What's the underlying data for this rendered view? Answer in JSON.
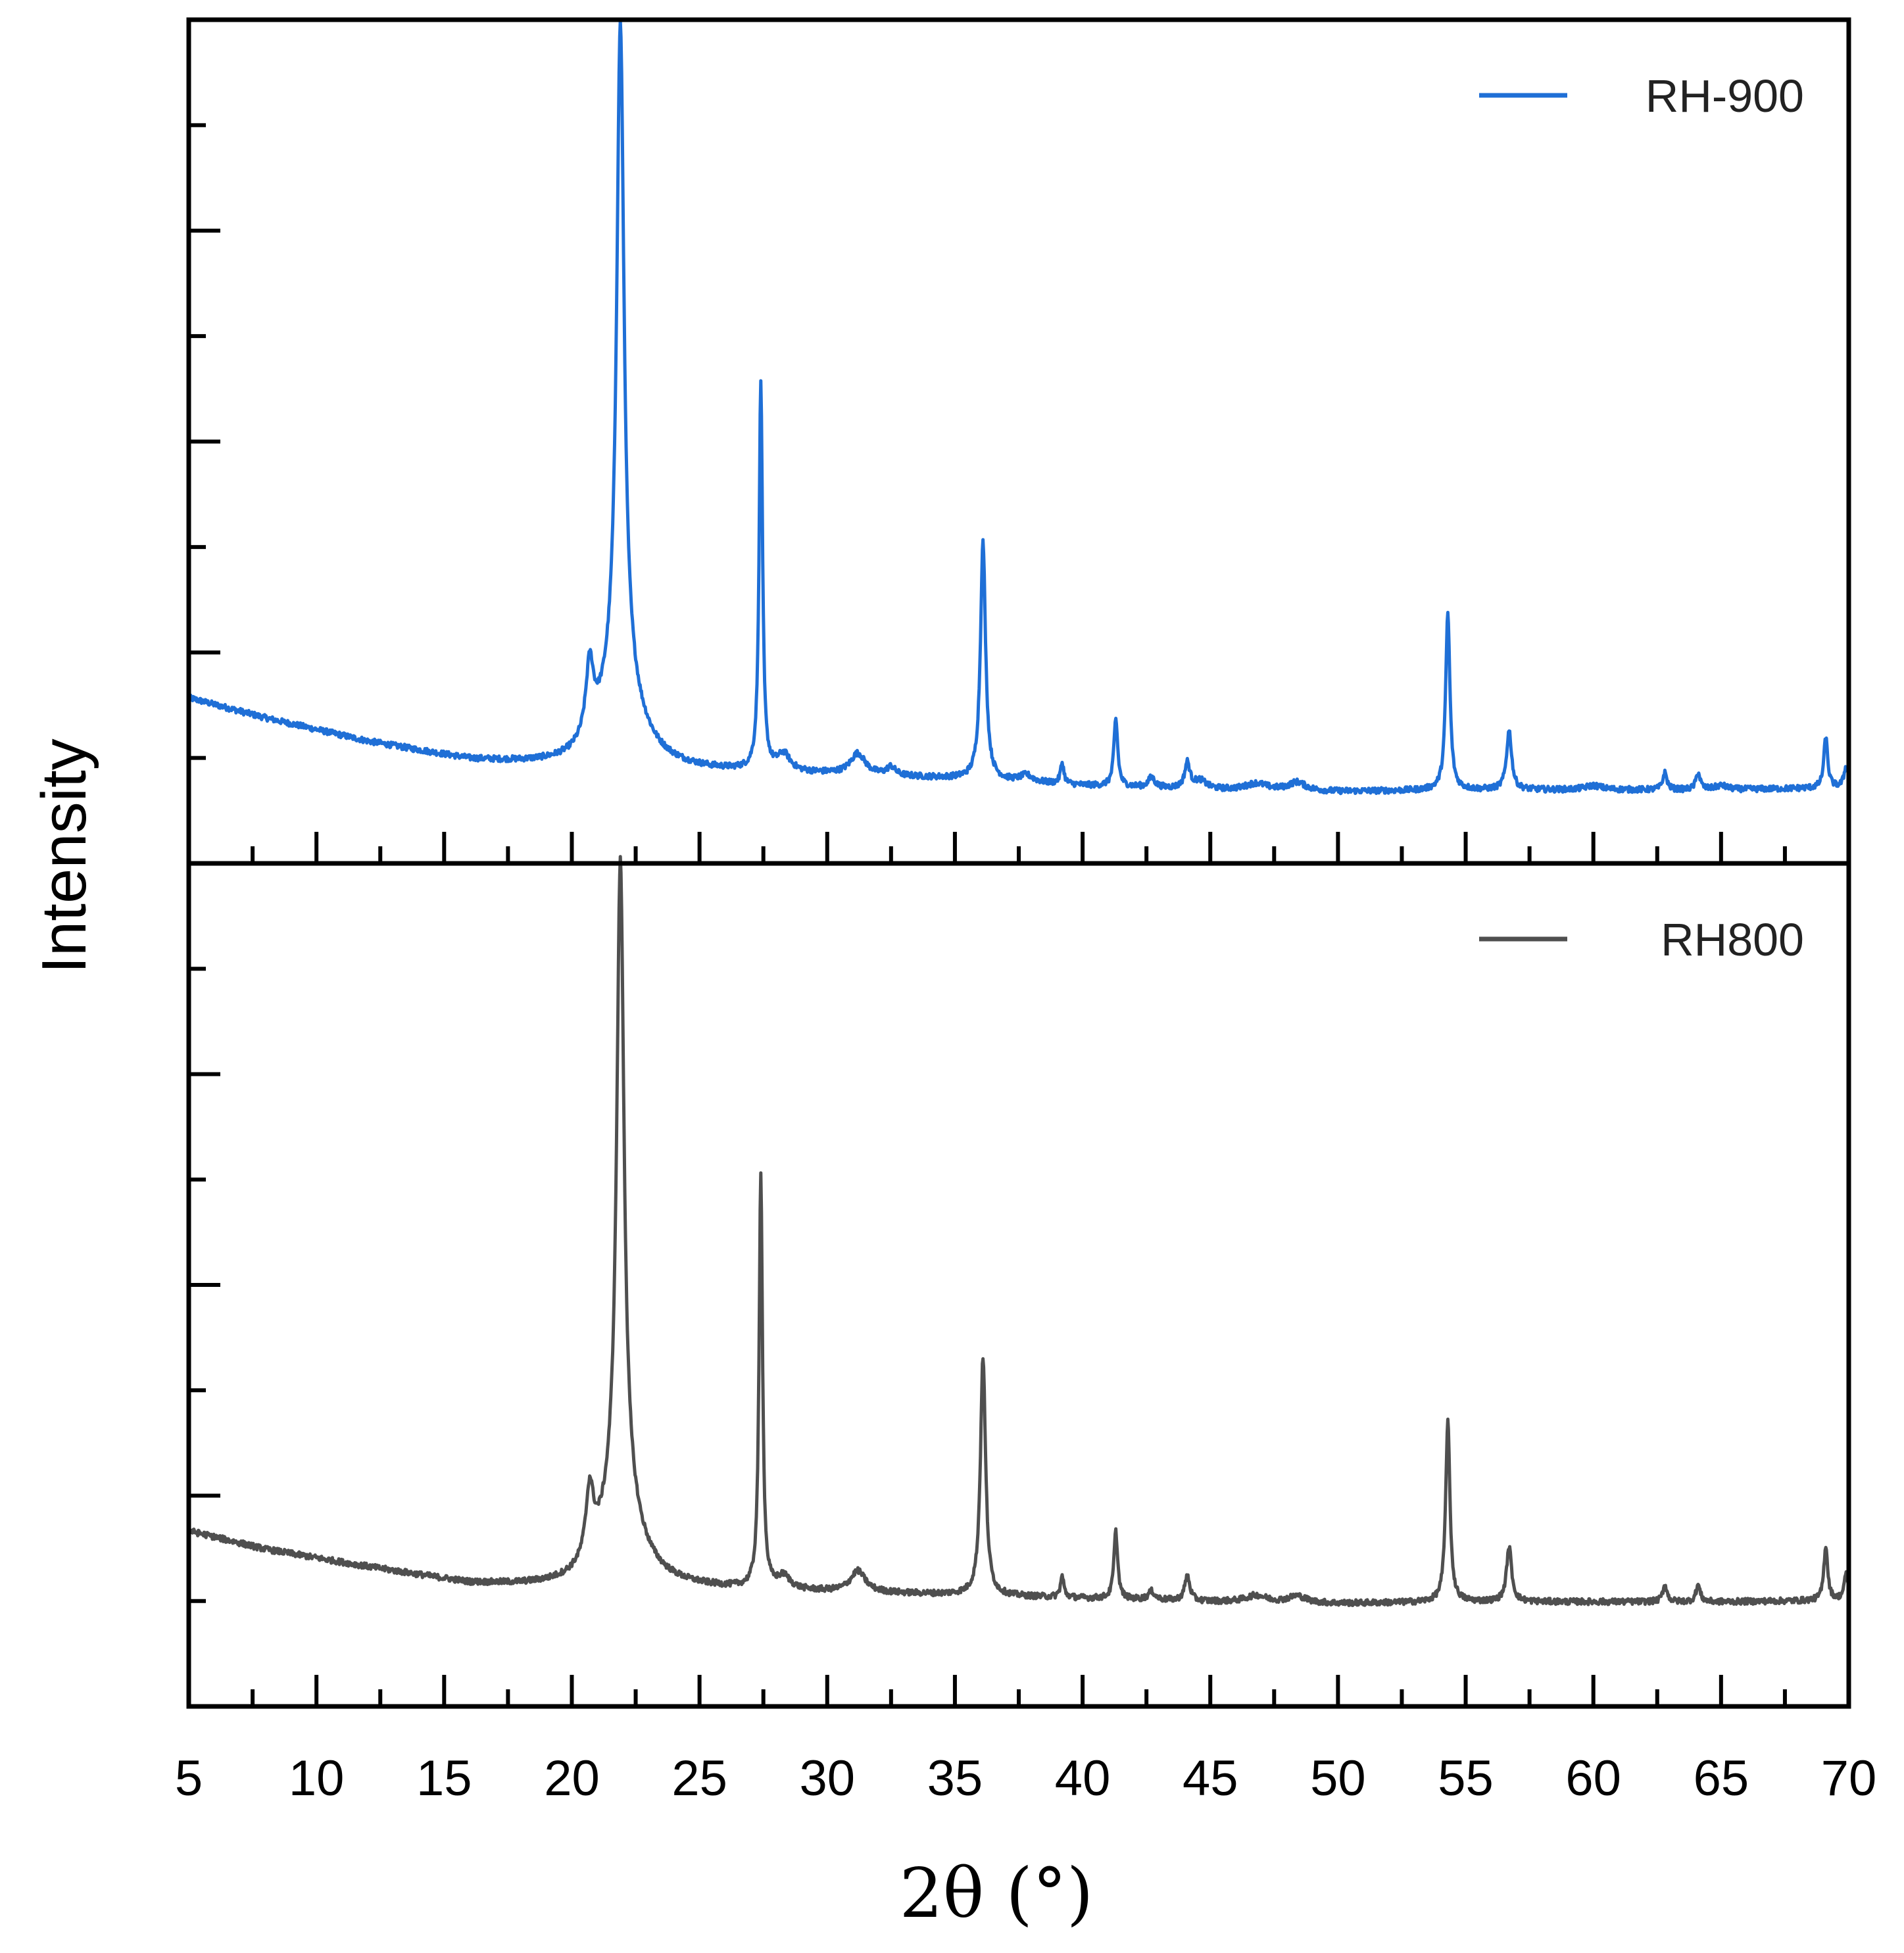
{
  "chart_data": {
    "type": "line",
    "xlabel": "2θ (°)",
    "ylabel": "Intensity",
    "xlim": [
      5,
      70
    ],
    "x_ticks": [
      5,
      10,
      15,
      20,
      25,
      30,
      35,
      40,
      45,
      50,
      55,
      60,
      65,
      70
    ],
    "x_tick_labels": [
      "5",
      "10",
      "15",
      "20",
      "25",
      "30",
      "35",
      "40",
      "45",
      "50",
      "55",
      "60",
      "65",
      "70"
    ],
    "panels": [
      {
        "name": "top",
        "legend": "RH-900",
        "color": "#1f6fd6",
        "ylim": [
          0,
          1
        ],
        "baseline": [
          [
            5,
            0.196
          ],
          [
            8,
            0.172
          ],
          [
            12,
            0.144
          ],
          [
            16,
            0.122
          ],
          [
            20,
            0.112
          ],
          [
            25,
            0.108
          ],
          [
            30,
            0.105
          ],
          [
            35,
            0.1
          ],
          [
            40,
            0.092
          ],
          [
            45,
            0.087
          ],
          [
            50,
            0.085
          ],
          [
            55,
            0.087
          ],
          [
            60,
            0.087
          ],
          [
            65,
            0.087
          ],
          [
            70,
            0.09
          ]
        ],
        "peaks": [
          {
            "x": 20.7,
            "h": 0.085,
            "w": 0.18
          },
          {
            "x": 21.9,
            "h": 0.775,
            "w": 0.17
          },
          {
            "x": 21.9,
            "h": 0.11,
            "w": 0.9
          },
          {
            "x": 27.4,
            "h": 0.46,
            "w": 0.08
          },
          {
            "x": 28.3,
            "h": 0.02,
            "w": 0.3
          },
          {
            "x": 31.2,
            "h": 0.025,
            "w": 0.35
          },
          {
            "x": 32.5,
            "h": 0.01,
            "w": 0.2
          },
          {
            "x": 36.1,
            "h": 0.282,
            "w": 0.12
          },
          {
            "x": 37.8,
            "h": 0.008,
            "w": 0.3
          },
          {
            "x": 39.2,
            "h": 0.025,
            "w": 0.08
          },
          {
            "x": 41.3,
            "h": 0.08,
            "w": 0.09
          },
          {
            "x": 42.7,
            "h": 0.012,
            "w": 0.15
          },
          {
            "x": 44.1,
            "h": 0.03,
            "w": 0.12
          },
          {
            "x": 44.6,
            "h": 0.01,
            "w": 0.3
          },
          {
            "x": 46.8,
            "h": 0.008,
            "w": 0.5
          },
          {
            "x": 48.4,
            "h": 0.01,
            "w": 0.4
          },
          {
            "x": 54.3,
            "h": 0.21,
            "w": 0.1
          },
          {
            "x": 56.7,
            "h": 0.07,
            "w": 0.12
          },
          {
            "x": 60.0,
            "h": 0.005,
            "w": 0.4
          },
          {
            "x": 62.8,
            "h": 0.02,
            "w": 0.1
          },
          {
            "x": 64.1,
            "h": 0.02,
            "w": 0.1
          },
          {
            "x": 65.0,
            "h": 0.005,
            "w": 0.3
          },
          {
            "x": 69.1,
            "h": 0.06,
            "w": 0.09
          },
          {
            "x": 69.9,
            "h": 0.025,
            "w": 0.1
          }
        ]
      },
      {
        "name": "bottom",
        "legend": "RH800",
        "color": "#4f4f4f",
        "ylim": [
          0,
          1
        ],
        "baseline": [
          [
            5,
            0.208
          ],
          [
            8,
            0.186
          ],
          [
            12,
            0.165
          ],
          [
            16,
            0.145
          ],
          [
            20,
            0.138
          ],
          [
            25,
            0.138
          ],
          [
            30,
            0.135
          ],
          [
            35,
            0.132
          ],
          [
            40,
            0.128
          ],
          [
            45,
            0.124
          ],
          [
            50,
            0.122
          ],
          [
            55,
            0.124
          ],
          [
            60,
            0.124
          ],
          [
            65,
            0.124
          ],
          [
            70,
            0.126
          ]
        ],
        "peaks": [
          {
            "x": 20.7,
            "h": 0.08,
            "w": 0.18
          },
          {
            "x": 21.9,
            "h": 0.755,
            "w": 0.17
          },
          {
            "x": 21.9,
            "h": 0.11,
            "w": 0.9
          },
          {
            "x": 27.4,
            "h": 0.49,
            "w": 0.08
          },
          {
            "x": 28.3,
            "h": 0.015,
            "w": 0.3
          },
          {
            "x": 31.2,
            "h": 0.025,
            "w": 0.35
          },
          {
            "x": 36.1,
            "h": 0.283,
            "w": 0.12
          },
          {
            "x": 39.2,
            "h": 0.025,
            "w": 0.08
          },
          {
            "x": 41.3,
            "h": 0.08,
            "w": 0.09
          },
          {
            "x": 42.7,
            "h": 0.01,
            "w": 0.15
          },
          {
            "x": 44.1,
            "h": 0.03,
            "w": 0.12
          },
          {
            "x": 46.8,
            "h": 0.008,
            "w": 0.5
          },
          {
            "x": 48.4,
            "h": 0.008,
            "w": 0.4
          },
          {
            "x": 54.3,
            "h": 0.215,
            "w": 0.1
          },
          {
            "x": 56.7,
            "h": 0.065,
            "w": 0.12
          },
          {
            "x": 62.8,
            "h": 0.02,
            "w": 0.1
          },
          {
            "x": 64.1,
            "h": 0.02,
            "w": 0.1
          },
          {
            "x": 69.1,
            "h": 0.065,
            "w": 0.09
          },
          {
            "x": 69.9,
            "h": 0.03,
            "w": 0.1
          }
        ]
      }
    ]
  }
}
